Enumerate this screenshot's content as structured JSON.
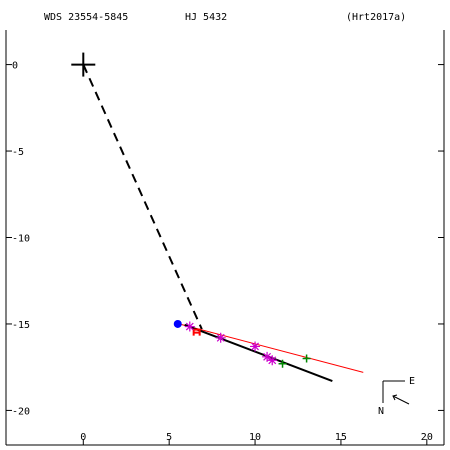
{
  "header": {
    "wds": "WDS 23554-5845",
    "name": "HJ 5432",
    "ref": "(Hrt2017a)"
  },
  "compass": {
    "east": "E",
    "north": "N"
  },
  "chart_data": {
    "type": "scatter",
    "title": "",
    "xlabel": "",
    "ylabel": "",
    "xlim": [
      -4.5,
      21
    ],
    "ylim": [
      -22,
      2
    ],
    "x_ticks": [
      0,
      5,
      10,
      15,
      20
    ],
    "y_ticks": [
      0,
      -5,
      -10,
      -15,
      -20
    ],
    "x_tick_labels": [
      "0",
      "5",
      "10",
      "15",
      "20"
    ],
    "y_tick_labels": [
      "0",
      "-5",
      "-10",
      "-15",
      "-20"
    ],
    "grid": false,
    "primary": {
      "x": 0,
      "y": 0
    },
    "line_to_first_obs": {
      "from": [
        0,
        0
      ],
      "to": [
        6.9,
        -15.3
      ],
      "style": "dashed",
      "color": "#000000"
    },
    "orbit_fit": {
      "from": [
        5.9,
        -15.05
      ],
      "to": [
        14.5,
        -18.3
      ],
      "color": "#000000"
    },
    "linear_fit": {
      "from": [
        5.6,
        -15.0
      ],
      "to": [
        16.3,
        -17.8
      ],
      "color": "#ff0000"
    },
    "series": [
      {
        "marker": "circle",
        "color": "#0000ff",
        "points": [
          [
            5.5,
            -15.0
          ]
        ]
      },
      {
        "marker": "square",
        "color": "#ff0000",
        "points": [
          [
            6.6,
            -15.5
          ]
        ]
      },
      {
        "marker": "asterisk",
        "color": "#cc00cc",
        "points": [
          [
            6.2,
            -15.15
          ],
          [
            8.0,
            -15.8
          ],
          [
            10.0,
            -16.3
          ],
          [
            10.7,
            -16.9
          ],
          [
            11.0,
            -17.1
          ]
        ]
      },
      {
        "marker": "plus",
        "color": "#008800",
        "points": [
          [
            11.6,
            -17.3
          ],
          [
            13.0,
            -17.0
          ]
        ]
      }
    ]
  }
}
